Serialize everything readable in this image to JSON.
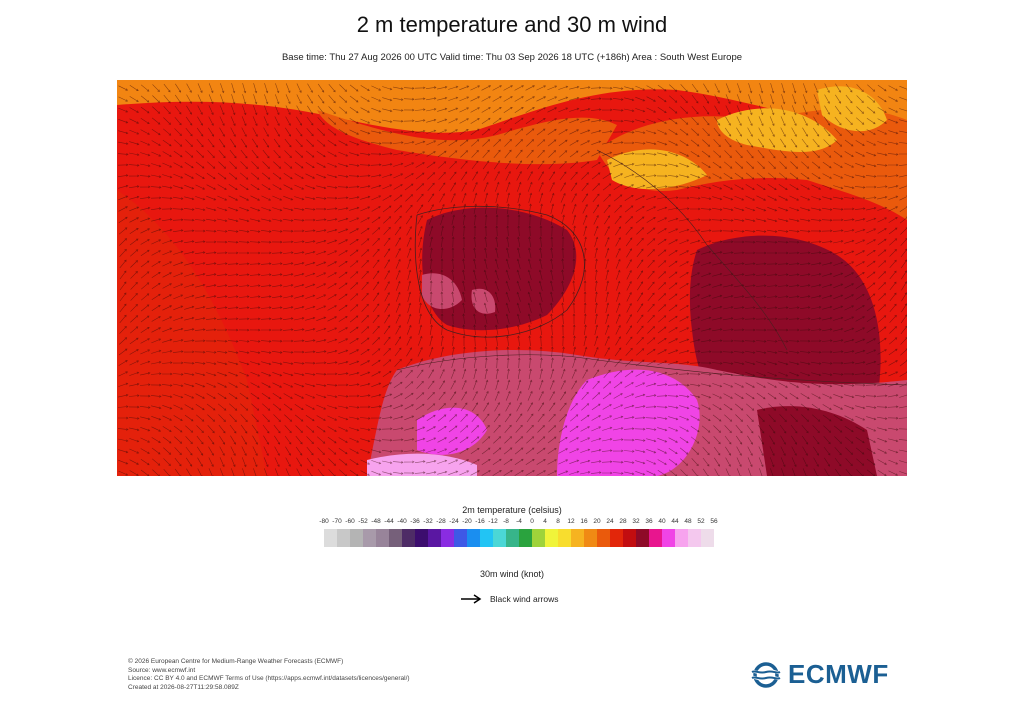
{
  "header": {
    "title": "2 m temperature and 30 m wind",
    "subtitle": "Base time: Thu 27 Aug 2026 00 UTC Valid time: Thu 03 Sep 2026 18 UTC (+186h) Area : South West Europe"
  },
  "legend": {
    "title": "2m temperature (celsius)",
    "ticks": [
      "-80",
      "-70",
      "-60",
      "-52",
      "-48",
      "-44",
      "-40",
      "-36",
      "-32",
      "-28",
      "-24",
      "-20",
      "-16",
      "-12",
      "-8",
      "-4",
      "0",
      "4",
      "8",
      "12",
      "16",
      "20",
      "24",
      "28",
      "32",
      "36",
      "40",
      "44",
      "48",
      "52",
      "56"
    ],
    "colors": [
      "#dcdcdc",
      "#c8c8c8",
      "#b4b4b4",
      "#a89aaa",
      "#98849a",
      "#76607a",
      "#4e2c66",
      "#3c0d6e",
      "#5a17a2",
      "#8a2ce2",
      "#3e59e6",
      "#1a8ef0",
      "#22c4f4",
      "#4bd7d6",
      "#37b58a",
      "#2aa33e",
      "#9fd33a",
      "#f0f43a",
      "#f8dd2e",
      "#f6b320",
      "#f08a14",
      "#ea5a0c",
      "#e2260a",
      "#c20d10",
      "#8e0a28",
      "#e8158e",
      "#f044e6",
      "#f7a3ee",
      "#f4c8ee",
      "#eedcea"
    ]
  },
  "wind": {
    "title": "30m wind (knot)",
    "arrow_label": "Black wind arrows"
  },
  "footer": {
    "lines": [
      "© 2026 European Centre for Medium-Range Weather Forecasts (ECMWF)",
      "Source: www.ecmwf.int",
      "Licence: CC BY 4.0 and ECMWF Terms of Use (https://apps.ecmwf.int/datasets/licences/general/)",
      "Created at 2026-08-27T11:29:58.089Z"
    ]
  },
  "logo": {
    "text": "ECMWF",
    "icon": "ecmwf-logo-icon"
  },
  "map": {
    "colors": {
      "ocean_red": "#e8170f",
      "north_orange": "#f28512",
      "north_orange_dark": "#ea5a0c",
      "yellow_alps": "#f6b320",
      "maroon": "#8e0a28",
      "pink": "#c9496f",
      "magenta": "#f044e6",
      "light_pink": "#f7a3ee",
      "border": "#4a2020"
    }
  }
}
